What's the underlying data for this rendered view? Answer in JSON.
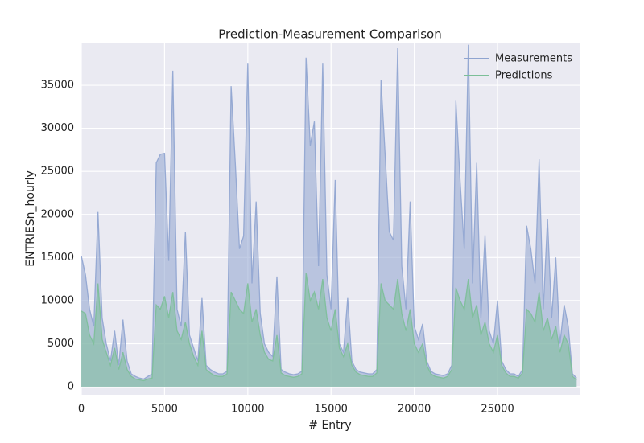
{
  "chart_data": {
    "type": "line",
    "title": "Prediction-Measurement Comparison",
    "xlabel": "# Entry",
    "ylabel": "ENTRIESn_hourly",
    "xlim": [
      0,
      29930
    ],
    "ylim": [
      -930,
      39860
    ],
    "xticks": [
      0,
      5000,
      10000,
      15000,
      20000,
      25000
    ],
    "yticks": [
      0,
      5000,
      10000,
      15000,
      20000,
      25000,
      30000,
      35000
    ],
    "grid": true,
    "legend": "upper right",
    "x": [
      0,
      250,
      500,
      750,
      1000,
      1250,
      1500,
      1750,
      2000,
      2250,
      2500,
      2750,
      3000,
      3250,
      3500,
      3750,
      4000,
      4250,
      4500,
      4750,
      5000,
      5250,
      5500,
      5750,
      6000,
      6250,
      6500,
      6750,
      7000,
      7250,
      7500,
      7750,
      8000,
      8250,
      8500,
      8750,
      9000,
      9250,
      9500,
      9750,
      10000,
      10250,
      10500,
      10750,
      11000,
      11250,
      11500,
      11750,
      12000,
      12250,
      12500,
      12750,
      13000,
      13250,
      13500,
      13750,
      14000,
      14250,
      14500,
      14750,
      15000,
      15250,
      15500,
      15750,
      16000,
      16250,
      16500,
      16750,
      17000,
      17250,
      17500,
      17750,
      18000,
      18250,
      18500,
      18750,
      19000,
      19250,
      19500,
      19750,
      20000,
      20250,
      20500,
      20750,
      21000,
      21250,
      21500,
      21750,
      22000,
      22250,
      22500,
      22750,
      23000,
      23250,
      23500,
      23750,
      24000,
      24250,
      24500,
      24750,
      25000,
      25250,
      25500,
      25750,
      26000,
      26250,
      26500,
      26750,
      27000,
      27250,
      27500,
      27750,
      28000,
      28250,
      28500,
      28750,
      29000,
      29250,
      29500,
      29750
    ],
    "series": [
      {
        "name": "Measurements",
        "color": "#8fa4d0",
        "values": [
          15200,
          13000,
          9000,
          7000,
          20300,
          8000,
          5000,
          3000,
          6500,
          2500,
          7800,
          3000,
          1500,
          1200,
          1000,
          900,
          1200,
          1500,
          26000,
          27000,
          27100,
          14600,
          36700,
          9000,
          7000,
          18000,
          6000,
          4500,
          3000,
          10300,
          2500,
          2000,
          1700,
          1500,
          1500,
          1800,
          34900,
          26000,
          16000,
          17500,
          37600,
          12000,
          21500,
          8500,
          5000,
          4000,
          3500,
          12800,
          2000,
          1700,
          1500,
          1400,
          1500,
          1800,
          38200,
          28000,
          30800,
          14000,
          37600,
          13000,
          9000,
          24000,
          5000,
          4000,
          10300,
          3000,
          2000,
          1700,
          1600,
          1500,
          1500,
          2000,
          35600,
          27000,
          18000,
          17000,
          39300,
          14000,
          9000,
          21500,
          7000,
          5500,
          7300,
          3000,
          1800,
          1500,
          1400,
          1300,
          1500,
          2500,
          33200,
          24000,
          16000,
          39700,
          12000,
          26000,
          8000,
          17600,
          6500,
          5000,
          10000,
          3000,
          2000,
          1500,
          1500,
          1200,
          2000,
          18700,
          16000,
          12000,
          26400,
          9000,
          19500,
          8000,
          15000,
          5000,
          9500,
          7000,
          1500,
          1000
        ]
      },
      {
        "name": "Predictions",
        "color": "#7cbf98",
        "values": [
          8800,
          8500,
          6000,
          5000,
          12000,
          5500,
          4000,
          2500,
          4500,
          2000,
          4000,
          2000,
          1200,
          900,
          800,
          700,
          900,
          1000,
          9500,
          9000,
          10500,
          8000,
          11000,
          6500,
          5500,
          7500,
          5000,
          3500,
          2500,
          6500,
          2000,
          1600,
          1300,
          1200,
          1200,
          1500,
          11000,
          10000,
          9000,
          8500,
          12000,
          7500,
          9000,
          6000,
          4000,
          3200,
          3000,
          6000,
          1600,
          1300,
          1200,
          1100,
          1200,
          1500,
          13200,
          10000,
          11000,
          9000,
          12500,
          8000,
          6500,
          9000,
          4500,
          3500,
          5000,
          2500,
          1700,
          1400,
          1300,
          1200,
          1200,
          1600,
          12000,
          10000,
          9500,
          9000,
          12500,
          8500,
          6500,
          9000,
          5000,
          4000,
          5000,
          2500,
          1500,
          1200,
          1100,
          1000,
          1200,
          2000,
          11500,
          10000,
          9000,
          12500,
          8000,
          9500,
          6000,
          7500,
          5000,
          4000,
          6000,
          2500,
          1600,
          1200,
          1200,
          1000,
          1600,
          9000,
          8500,
          7500,
          11000,
          6500,
          8000,
          5500,
          7000,
          4000,
          6000,
          5000,
          1200,
          800
        ]
      }
    ]
  }
}
